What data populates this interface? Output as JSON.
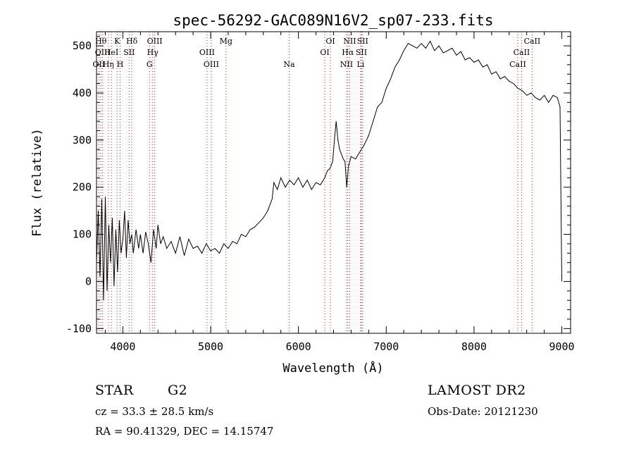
{
  "chart_data": {
    "type": "line",
    "title": "spec-56292-GAC089N16V2_sp07-233.fits",
    "xlabel": "Wavelength (Å)",
    "ylabel": "Flux (relative)",
    "xlim": [
      3700,
      9100
    ],
    "ylim": [
      -110,
      530
    ],
    "xticks": [
      4000,
      5000,
      6000,
      7000,
      8000,
      9000
    ],
    "yticks": [
      -100,
      0,
      100,
      200,
      300,
      400,
      500
    ],
    "grid": false,
    "series": [
      {
        "points": [
          [
            3700,
            40
          ],
          [
            3720,
            150
          ],
          [
            3740,
            10
          ],
          [
            3760,
            175
          ],
          [
            3780,
            -40
          ],
          [
            3800,
            180
          ],
          [
            3820,
            -20
          ],
          [
            3840,
            120
          ],
          [
            3860,
            40
          ],
          [
            3880,
            135
          ],
          [
            3900,
            -10
          ],
          [
            3920,
            110
          ],
          [
            3940,
            20
          ],
          [
            3960,
            130
          ],
          [
            3980,
            60
          ],
          [
            4000,
            90
          ],
          [
            4020,
            150
          ],
          [
            4040,
            50
          ],
          [
            4060,
            130
          ],
          [
            4080,
            80
          ],
          [
            4100,
            100
          ],
          [
            4120,
            60
          ],
          [
            4150,
            110
          ],
          [
            4180,
            70
          ],
          [
            4200,
            100
          ],
          [
            4230,
            60
          ],
          [
            4260,
            105
          ],
          [
            4290,
            80
          ],
          [
            4320,
            40
          ],
          [
            4350,
            110
          ],
          [
            4380,
            70
          ],
          [
            4400,
            120
          ],
          [
            4430,
            80
          ],
          [
            4460,
            95
          ],
          [
            4500,
            70
          ],
          [
            4550,
            85
          ],
          [
            4600,
            60
          ],
          [
            4650,
            95
          ],
          [
            4700,
            55
          ],
          [
            4750,
            90
          ],
          [
            4800,
            70
          ],
          [
            4850,
            75
          ],
          [
            4900,
            60
          ],
          [
            4950,
            80
          ],
          [
            5000,
            65
          ],
          [
            5050,
            70
          ],
          [
            5100,
            60
          ],
          [
            5150,
            80
          ],
          [
            5200,
            70
          ],
          [
            5250,
            85
          ],
          [
            5300,
            80
          ],
          [
            5350,
            100
          ],
          [
            5400,
            95
          ],
          [
            5450,
            110
          ],
          [
            5500,
            115
          ],
          [
            5550,
            125
          ],
          [
            5600,
            135
          ],
          [
            5650,
            150
          ],
          [
            5700,
            175
          ],
          [
            5720,
            210
          ],
          [
            5760,
            195
          ],
          [
            5800,
            220
          ],
          [
            5850,
            200
          ],
          [
            5900,
            215
          ],
          [
            5950,
            205
          ],
          [
            6000,
            220
          ],
          [
            6050,
            200
          ],
          [
            6100,
            215
          ],
          [
            6150,
            195
          ],
          [
            6200,
            210
          ],
          [
            6250,
            205
          ],
          [
            6300,
            220
          ],
          [
            6330,
            235
          ],
          [
            6360,
            240
          ],
          [
            6390,
            255
          ],
          [
            6410,
            300
          ],
          [
            6430,
            340
          ],
          [
            6450,
            300
          ],
          [
            6470,
            280
          ],
          [
            6490,
            270
          ],
          [
            6510,
            260
          ],
          [
            6530,
            255
          ],
          [
            6550,
            200
          ],
          [
            6570,
            245
          ],
          [
            6600,
            265
          ],
          [
            6650,
            260
          ],
          [
            6700,
            275
          ],
          [
            6750,
            290
          ],
          [
            6800,
            310
          ],
          [
            6850,
            340
          ],
          [
            6900,
            370
          ],
          [
            6950,
            380
          ],
          [
            7000,
            410
          ],
          [
            7050,
            430
          ],
          [
            7100,
            455
          ],
          [
            7150,
            470
          ],
          [
            7200,
            490
          ],
          [
            7250,
            505
          ],
          [
            7300,
            500
          ],
          [
            7350,
            495
          ],
          [
            7400,
            505
          ],
          [
            7450,
            495
          ],
          [
            7500,
            510
          ],
          [
            7550,
            490
          ],
          [
            7600,
            500
          ],
          [
            7650,
            485
          ],
          [
            7700,
            490
          ],
          [
            7750,
            495
          ],
          [
            7800,
            480
          ],
          [
            7850,
            488
          ],
          [
            7900,
            470
          ],
          [
            7950,
            475
          ],
          [
            8000,
            465
          ],
          [
            8050,
            470
          ],
          [
            8100,
            455
          ],
          [
            8150,
            460
          ],
          [
            8200,
            440
          ],
          [
            8250,
            445
          ],
          [
            8300,
            430
          ],
          [
            8350,
            435
          ],
          [
            8400,
            425
          ],
          [
            8450,
            420
          ],
          [
            8500,
            410
          ],
          [
            8550,
            405
          ],
          [
            8600,
            395
          ],
          [
            8650,
            400
          ],
          [
            8700,
            390
          ],
          [
            8750,
            385
          ],
          [
            8800,
            395
          ],
          [
            8850,
            380
          ],
          [
            8900,
            395
          ],
          [
            8950,
            390
          ],
          [
            8980,
            370
          ],
          [
            9000,
            0
          ]
        ]
      }
    ],
    "lines": [
      {
        "x": 3727,
        "label": "OII",
        "row": 3
      },
      {
        "x": 3750,
        "label": "Hθ",
        "row": 1
      },
      {
        "x": 3770,
        "label": "OIII",
        "row": 2
      },
      {
        "x": 3835,
        "label": "Hη",
        "row": 3
      },
      {
        "x": 3869,
        "label": "HeI",
        "row": 2
      },
      {
        "x": 3934,
        "label": "K",
        "row": 1
      },
      {
        "x": 3969,
        "label": "H",
        "row": 3
      },
      {
        "x": 4072,
        "label": "SII",
        "row": 2
      },
      {
        "x": 4102,
        "label": "Hδ",
        "row": 1
      },
      {
        "x": 4304,
        "label": "G",
        "row": 3
      },
      {
        "x": 4340,
        "label": "Hγ",
        "row": 2
      },
      {
        "x": 4363,
        "label": "OIII",
        "row": 1
      },
      {
        "x": 4959,
        "label": "OIII",
        "row": 2
      },
      {
        "x": 5007,
        "label": "OIII",
        "row": 3
      },
      {
        "x": 5175,
        "label": "Mg",
        "row": 1
      },
      {
        "x": 5894,
        "label": "Na",
        "row": 3
      },
      {
        "x": 6300,
        "label": "OI",
        "row": 2
      },
      {
        "x": 6364,
        "label": "OI",
        "row": 1
      },
      {
        "x": 6548,
        "label": "NII",
        "row": 3
      },
      {
        "x": 6563,
        "label": "Hα",
        "row": 2
      },
      {
        "x": 6584,
        "label": "NII",
        "row": 1
      },
      {
        "x": 6708,
        "label": "Li",
        "row": 3
      },
      {
        "x": 6717,
        "label": "SII",
        "row": 2
      },
      {
        "x": 6731,
        "label": "SII",
        "row": 1
      },
      {
        "x": 8498,
        "label": "CaII",
        "row": 3
      },
      {
        "x": 8542,
        "label": "CaII",
        "row": 2
      },
      {
        "x": 8662,
        "label": "CaII",
        "row": 1
      }
    ]
  },
  "info": {
    "class_type": "STAR",
    "subclass": "G2",
    "survey": "LAMOST DR2",
    "redshift_text": "cz = 33.3 ± 28.5 km/s",
    "obs_date": "Obs-Date: 20121230",
    "coords": "RA =   90.41329, DEC =   14.15747"
  }
}
